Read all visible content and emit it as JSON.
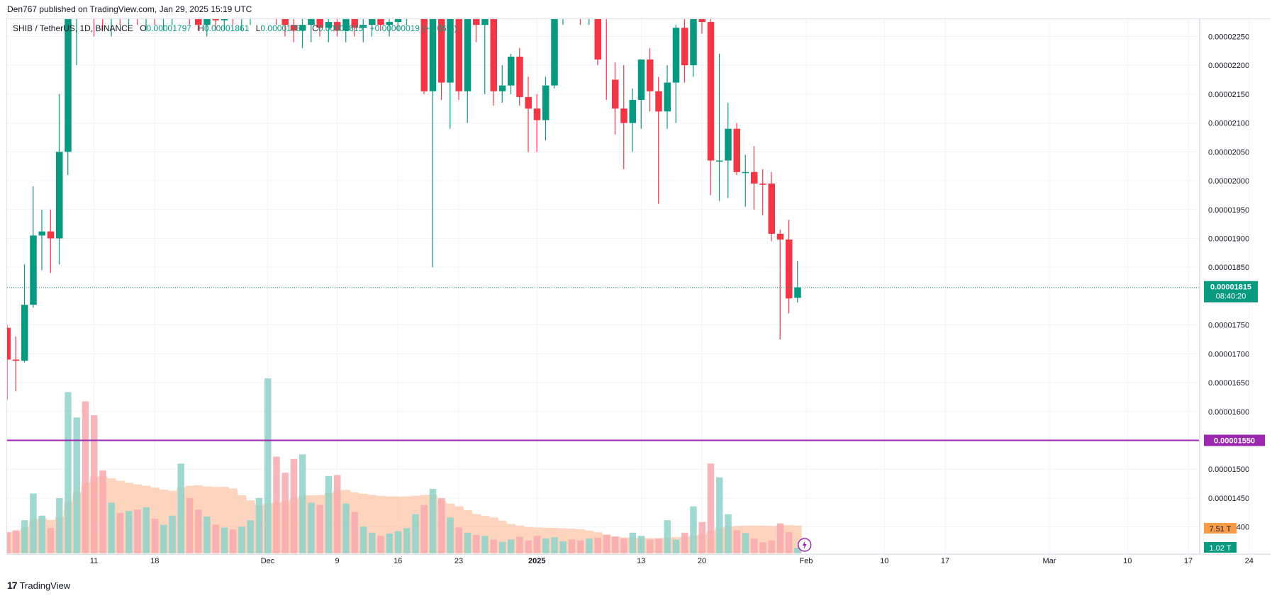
{
  "header": {
    "published": "Den767 published on TradingView.com, Jan 29, 2025 15:19 UTC"
  },
  "legend": {
    "symbol": "SHIB / TetherUS, 1D, BINANCE",
    "o_label": "O",
    "o_value": "0.00001797",
    "h_label": "H",
    "h_value": "0.00001861",
    "l_label": "L",
    "l_value": "0.00001789",
    "c_label": "C",
    "c_value": "0.00001815",
    "change": "+0.00000019 (+1.06%)"
  },
  "footer": {
    "brand": "TradingView",
    "logo": "17"
  },
  "colors": {
    "up": "#089981",
    "down": "#f23645",
    "vol_up": "#8fd2c9",
    "vol_down": "#f7a9ae",
    "avg": "#fbb38a",
    "level": "#9c27b0",
    "price_label": "#089981",
    "vol_label": "#f79b48"
  },
  "chart_data": {
    "type": "candlestick",
    "timeframe": "1D",
    "y_ticks": [
      "0.00002250",
      "0.00002200",
      "0.00002150",
      "0.00002100",
      "0.00002050",
      "0.00002000",
      "0.00001950",
      "0.00001900",
      "0.00001850",
      "0.00001750",
      "0.00001700",
      "0.00001650",
      "0.00001600",
      "0.00001500",
      "0.00001450",
      "0.00001400"
    ],
    "y_range": [
      1.3775e-05,
      2.28e-05
    ],
    "x_ticks": [
      "11",
      "18",
      "Dec",
      "9",
      "16",
      "23",
      "2025",
      "13",
      "20",
      "Feb",
      "10",
      "17",
      "Mar",
      "10",
      "17",
      "24"
    ],
    "x_tick_dates": [
      "2024-11-11",
      "2024-11-18",
      "2024-12-01",
      "2024-12-09",
      "2024-12-16",
      "2024-12-23",
      "2025-01-01",
      "2025-01-13",
      "2025-01-20",
      "2025-02-01",
      "2025-02-10",
      "2025-02-17",
      "2025-03-01",
      "2025-03-10",
      "2025-03-17",
      "2025-03-24"
    ],
    "last_price": "0.00001815",
    "countdown": "08:40:20",
    "horizontal_level": "0.00001550",
    "volume_label": "7.51 T",
    "volume_label2": "1.02 T",
    "candles_start": "2024-11-01",
    "candles": [
      {
        "o": 1.745e-05,
        "h": 1.75e-05,
        "l": 1.62e-05,
        "c": 1.69e-05,
        "v": 0.46
      },
      {
        "o": 1.69e-05,
        "h": 1.73e-05,
        "l": 1.635e-05,
        "c": 1.688e-05,
        "v": 0.5
      },
      {
        "o": 1.688e-05,
        "h": 1.855e-05,
        "l": 1.685e-05,
        "c": 1.785e-05,
        "v": 0.72
      },
      {
        "o": 1.785e-05,
        "h": 1.99e-05,
        "l": 1.78e-05,
        "c": 1.905e-05,
        "v": 1.3
      },
      {
        "o": 1.905e-05,
        "h": 1.95e-05,
        "l": 1.845e-05,
        "c": 1.912e-05,
        "v": 0.82
      },
      {
        "o": 1.912e-05,
        "h": 1.95e-05,
        "l": 1.84e-05,
        "c": 1.9e-05,
        "v": 0.55
      },
      {
        "o": 1.9e-05,
        "h": 2.15e-05,
        "l": 1.855e-05,
        "c": 2.05e-05,
        "v": 1.2
      },
      {
        "o": 2.05e-05,
        "h": 2.3e-05,
        "l": 2.01e-05,
        "c": 2.3e-05,
        "v": 3.5
      },
      {
        "o": 2.3e-05,
        "h": 2.4e-05,
        "l": 2.2e-05,
        "c": 2.4e-05,
        "v": 2.95
      },
      {
        "o": 2.4e-05,
        "h": 2.42e-05,
        "l": 2.28e-05,
        "c": 2.35e-05,
        "v": 3.3
      },
      {
        "o": 2.35e-05,
        "h": 2.38e-05,
        "l": 2.25e-05,
        "c": 2.3e-05,
        "v": 3.0
      },
      {
        "o": 2.3e-05,
        "h": 2.33e-05,
        "l": 2.26e-05,
        "c": 2.28e-05,
        "v": 1.8
      },
      {
        "o": 2.28e-05,
        "h": 2.32e-05,
        "l": 2.25e-05,
        "c": 2.31e-05,
        "v": 1.1
      },
      {
        "o": 2.31e-05,
        "h": 2.33e-05,
        "l": 2.27e-05,
        "c": 2.29e-05,
        "v": 0.88
      },
      {
        "o": 2.29e-05,
        "h": 2.32e-05,
        "l": 2.26e-05,
        "c": 2.3e-05,
        "v": 0.92
      },
      {
        "o": 2.3e-05,
        "h": 2.32e-05,
        "l": 2.27e-05,
        "c": 2.29e-05,
        "v": 0.95
      },
      {
        "o": 2.29e-05,
        "h": 2.32e-05,
        "l": 2.26e-05,
        "c": 2.3e-05,
        "v": 1.0
      },
      {
        "o": 2.3e-05,
        "h": 2.33e-05,
        "l": 2.27e-05,
        "c": 2.285e-05,
        "v": 0.75
      },
      {
        "o": 2.285e-05,
        "h": 2.31e-05,
        "l": 2.26e-05,
        "c": 2.295e-05,
        "v": 0.62
      },
      {
        "o": 2.295e-05,
        "h": 2.33e-05,
        "l": 2.27e-05,
        "c": 2.31e-05,
        "v": 0.82
      },
      {
        "o": 2.31e-05,
        "h": 2.34e-05,
        "l": 2.28e-05,
        "c": 2.32e-05,
        "v": 1.95
      },
      {
        "o": 2.32e-05,
        "h": 2.34e-05,
        "l": 2.27e-05,
        "c": 2.29e-05,
        "v": 1.2
      },
      {
        "o": 2.29e-05,
        "h": 2.32e-05,
        "l": 2.26e-05,
        "c": 2.27e-05,
        "v": 0.95
      },
      {
        "o": 2.27e-05,
        "h": 2.3e-05,
        "l": 2.25e-05,
        "c": 2.285e-05,
        "v": 0.8
      },
      {
        "o": 2.285e-05,
        "h": 2.3e-05,
        "l": 2.26e-05,
        "c": 2.278e-05,
        "v": 0.62
      },
      {
        "o": 2.278e-05,
        "h": 2.3e-05,
        "l": 2.26e-05,
        "c": 2.29e-05,
        "v": 0.56
      },
      {
        "o": 2.29e-05,
        "h": 2.31e-05,
        "l": 2.27e-05,
        "c": 2.28e-05,
        "v": 0.52
      },
      {
        "o": 2.28e-05,
        "h": 2.3e-05,
        "l": 2.26e-05,
        "c": 2.29e-05,
        "v": 0.58
      },
      {
        "o": 2.29e-05,
        "h": 2.31e-05,
        "l": 2.27e-05,
        "c": 2.3e-05,
        "v": 0.72
      },
      {
        "o": 2.3e-05,
        "h": 2.33e-05,
        "l": 2.28e-05,
        "c": 2.31e-05,
        "v": 1.2
      },
      {
        "o": 2.31e-05,
        "h": 2.34e-05,
        "l": 2.29e-05,
        "c": 2.32e-05,
        "v": 3.8
      },
      {
        "o": 2.32e-05,
        "h": 2.34e-05,
        "l": 2.27e-05,
        "c": 2.29e-05,
        "v": 2.1
      },
      {
        "o": 2.29e-05,
        "h": 2.31e-05,
        "l": 2.25e-05,
        "c": 2.27e-05,
        "v": 1.75
      },
      {
        "o": 2.27e-05,
        "h": 2.3e-05,
        "l": 2.24e-05,
        "c": 2.26e-05,
        "v": 2.05
      },
      {
        "o": 2.26e-05,
        "h": 2.28e-05,
        "l": 2.23e-05,
        "c": 2.27e-05,
        "v": 2.15
      },
      {
        "o": 2.27e-05,
        "h": 2.29e-05,
        "l": 2.24e-05,
        "c": 2.28e-05,
        "v": 1.1
      },
      {
        "o": 2.28e-05,
        "h": 2.3e-05,
        "l": 2.25e-05,
        "c": 2.265e-05,
        "v": 1.05
      },
      {
        "o": 2.265e-05,
        "h": 2.29e-05,
        "l": 2.24e-05,
        "c": 2.275e-05,
        "v": 1.68
      },
      {
        "o": 2.275e-05,
        "h": 2.3e-05,
        "l": 2.25e-05,
        "c": 2.26e-05,
        "v": 1.7
      },
      {
        "o": 2.26e-05,
        "h": 2.29e-05,
        "l": 2.24e-05,
        "c": 2.28e-05,
        "v": 1.08
      },
      {
        "o": 2.28e-05,
        "h": 2.3e-05,
        "l": 2.25e-05,
        "c": 2.265e-05,
        "v": 0.9
      },
      {
        "o": 2.265e-05,
        "h": 2.29e-05,
        "l": 2.24e-05,
        "c": 2.27e-05,
        "v": 0.58
      },
      {
        "o": 2.27e-05,
        "h": 2.29e-05,
        "l": 2.25e-05,
        "c": 2.28e-05,
        "v": 0.45
      },
      {
        "o": 2.28e-05,
        "h": 2.3e-05,
        "l": 2.26e-05,
        "c": 2.27e-05,
        "v": 0.38
      },
      {
        "o": 2.27e-05,
        "h": 2.29e-05,
        "l": 2.25e-05,
        "c": 2.275e-05,
        "v": 0.43
      },
      {
        "o": 2.275e-05,
        "h": 2.3e-05,
        "l": 2.26e-05,
        "c": 2.29e-05,
        "v": 0.48
      },
      {
        "o": 2.29e-05,
        "h": 2.31e-05,
        "l": 2.27e-05,
        "c": 2.3e-05,
        "v": 0.55
      },
      {
        "o": 2.3e-05,
        "h": 2.32e-05,
        "l": 2.28e-05,
        "c": 2.31e-05,
        "v": 0.85
      },
      {
        "o": 2.31e-05,
        "h": 2.32e-05,
        "l": 2.15e-05,
        "c": 2.155e-05,
        "v": 1.05
      },
      {
        "o": 2.155e-05,
        "h": 2.32e-05,
        "l": 1.85e-05,
        "c": 2.3e-05,
        "v": 1.4
      },
      {
        "o": 2.3e-05,
        "h": 2.32e-05,
        "l": 2.14e-05,
        "c": 2.17e-05,
        "v": 1.2
      },
      {
        "o": 2.17e-05,
        "h": 2.32e-05,
        "l": 2.09e-05,
        "c": 2.3e-05,
        "v": 0.78
      },
      {
        "o": 2.3e-05,
        "h": 2.31e-05,
        "l": 2.14e-05,
        "c": 2.155e-05,
        "v": 0.56
      },
      {
        "o": 2.155e-05,
        "h": 2.32e-05,
        "l": 2.1e-05,
        "c": 2.3e-05,
        "v": 0.45
      },
      {
        "o": 2.3e-05,
        "h": 2.33e-05,
        "l": 2.24e-05,
        "c": 2.27e-05,
        "v": 0.4
      },
      {
        "o": 2.27e-05,
        "h": 2.32e-05,
        "l": 2.15e-05,
        "c": 2.3e-05,
        "v": 0.38
      },
      {
        "o": 2.3e-05,
        "h": 2.32e-05,
        "l": 2.13e-05,
        "c": 2.155e-05,
        "v": 0.3
      },
      {
        "o": 2.155e-05,
        "h": 2.2e-05,
        "l": 2.135e-05,
        "c": 2.165e-05,
        "v": 0.25
      },
      {
        "o": 2.165e-05,
        "h": 2.22e-05,
        "l": 2.15e-05,
        "c": 2.215e-05,
        "v": 0.3
      },
      {
        "o": 2.215e-05,
        "h": 2.23e-05,
        "l": 2.13e-05,
        "c": 2.145e-05,
        "v": 0.36
      },
      {
        "o": 2.145e-05,
        "h": 2.18e-05,
        "l": 2.05e-05,
        "c": 2.125e-05,
        "v": 0.28
      },
      {
        "o": 2.125e-05,
        "h": 2.15e-05,
        "l": 2.05e-05,
        "c": 2.105e-05,
        "v": 0.38
      },
      {
        "o": 2.105e-05,
        "h": 2.18e-05,
        "l": 2.07e-05,
        "c": 2.165e-05,
        "v": 0.32
      },
      {
        "o": 2.165e-05,
        "h": 2.3e-05,
        "l": 2.16e-05,
        "c": 2.3e-05,
        "v": 0.35
      },
      {
        "o": 2.3e-05,
        "h": 2.32e-05,
        "l": 2.27e-05,
        "c": 2.31e-05,
        "v": 0.26
      },
      {
        "o": 2.31e-05,
        "h": 2.33e-05,
        "l": 2.28e-05,
        "c": 2.3e-05,
        "v": 0.3
      },
      {
        "o": 2.3e-05,
        "h": 2.32e-05,
        "l": 2.27e-05,
        "c": 2.29e-05,
        "v": 0.28
      },
      {
        "o": 2.29e-05,
        "h": 2.32e-05,
        "l": 2.27e-05,
        "c": 2.3e-05,
        "v": 0.32
      },
      {
        "o": 2.3e-05,
        "h": 2.32e-05,
        "l": 2.2e-05,
        "c": 2.21e-05,
        "v": 0.34
      },
      {
        "o": 2.31e-05,
        "h": 2.32e-05,
        "l": 2.14e-05,
        "c": 2.3e-05,
        "v": 0.4
      },
      {
        "o": 2.175e-05,
        "h": 2.205e-05,
        "l": 2.08e-05,
        "c": 2.125e-05,
        "v": 0.36
      },
      {
        "o": 2.125e-05,
        "h": 2.2e-05,
        "l": 2.02e-05,
        "c": 2.1e-05,
        "v": 0.32
      },
      {
        "o": 2.1e-05,
        "h": 2.16e-05,
        "l": 2.05e-05,
        "c": 2.14e-05,
        "v": 0.45
      },
      {
        "o": 2.14e-05,
        "h": 2.21e-05,
        "l": 2.09e-05,
        "c": 2.21e-05,
        "v": 0.38
      },
      {
        "o": 2.21e-05,
        "h": 2.23e-05,
        "l": 2.12e-05,
        "c": 2.155e-05,
        "v": 0.3
      },
      {
        "o": 2.155e-05,
        "h": 2.18e-05,
        "l": 1.96e-05,
        "c": 2.12e-05,
        "v": 0.32
      },
      {
        "o": 2.12e-05,
        "h": 2.2e-05,
        "l": 2.09e-05,
        "c": 2.17e-05,
        "v": 0.72
      },
      {
        "o": 2.17e-05,
        "h": 2.27e-05,
        "l": 2.1e-05,
        "c": 2.265e-05,
        "v": 0.3
      },
      {
        "o": 2.265e-05,
        "h": 2.28e-05,
        "l": 2.17e-05,
        "c": 2.2e-05,
        "v": 0.45
      },
      {
        "o": 2.2e-05,
        "h": 2.3e-05,
        "l": 2.18e-05,
        "c": 2.29e-05,
        "v": 1.02
      },
      {
        "o": 2.29e-05,
        "h": 2.3e-05,
        "l": 2.255e-05,
        "c": 2.275e-05,
        "v": 0.68
      },
      {
        "o": 2.275e-05,
        "h": 2.285e-05,
        "l": 1.975e-05,
        "c": 2.035e-05,
        "v": 1.95
      },
      {
        "o": 2.035e-05,
        "h": 2.22e-05,
        "l": 1.965e-05,
        "c": 2.035e-05,
        "v": 1.65
      },
      {
        "o": 2.035e-05,
        "h": 2.135e-05,
        "l": 1.97e-05,
        "c": 2.09e-05,
        "v": 0.85
      },
      {
        "o": 2.09e-05,
        "h": 2.1e-05,
        "l": 2.01e-05,
        "c": 2.015e-05,
        "v": 0.5
      },
      {
        "o": 2.015e-05,
        "h": 2.045e-05,
        "l": 1.955e-05,
        "c": 2.015e-05,
        "v": 0.44
      },
      {
        "o": 2.015e-05,
        "h": 2.06e-05,
        "l": 1.95e-05,
        "c": 1.995e-05,
        "v": 0.32
      },
      {
        "o": 1.995e-05,
        "h": 2.02e-05,
        "l": 1.94e-05,
        "c": 1.993e-05,
        "v": 0.24
      },
      {
        "o": 1.995e-05,
        "h": 2.015e-05,
        "l": 1.895e-05,
        "c": 1.908e-05,
        "v": 0.28
      },
      {
        "o": 1.908e-05,
        "h": 1.915e-05,
        "l": 1.725e-05,
        "c": 1.898e-05,
        "v": 0.65
      },
      {
        "o": 1.898e-05,
        "h": 1.932e-05,
        "l": 1.77e-05,
        "c": 1.796e-05,
        "v": 0.46
      },
      {
        "o": 1.797e-05,
        "h": 1.861e-05,
        "l": 1.789e-05,
        "c": 1.815e-05,
        "v": 0.12
      }
    ]
  }
}
